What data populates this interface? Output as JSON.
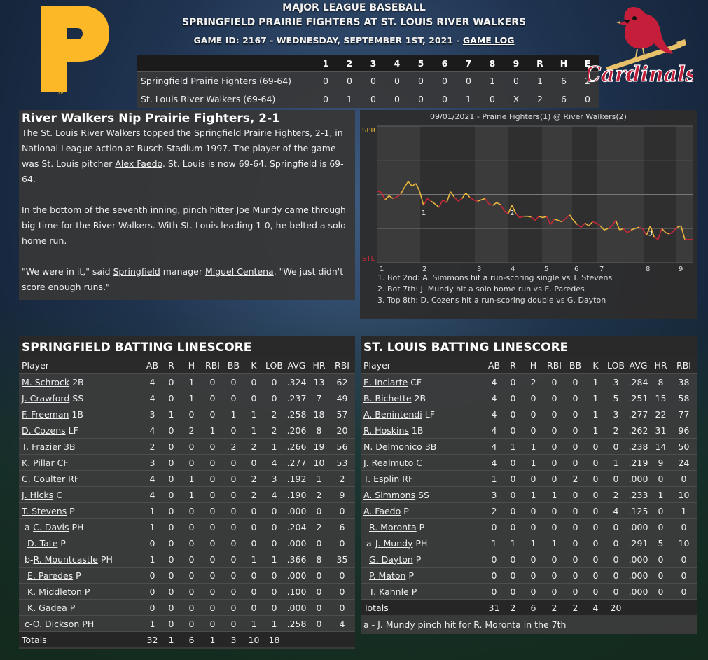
{
  "header": {
    "league": "MAJOR LEAGUE BASEBALL",
    "matchup": "SPRINGFIELD PRAIRIE FIGHTERS AT ST. LOUIS RIVER WALKERS",
    "game_info": "GAME ID: 2167 - WEDNESDAY, SEPTEMBER 1ST, 2021 - ",
    "game_log_link": "GAME LOG",
    "home_logo_text": "Cardinals"
  },
  "colors": {
    "pirates_gold": "#fdb827",
    "cardinals_red": "#c41e3a",
    "chart_lead_away": "#e8b63a",
    "chart_lead_home": "#c7283a"
  },
  "linescore": {
    "headers": [
      "1",
      "2",
      "3",
      "4",
      "5",
      "6",
      "7",
      "8",
      "9",
      "R",
      "H",
      "E"
    ],
    "teams": [
      {
        "name": "Springfield Prairie Fighters (69-64)",
        "cells": [
          "0",
          "0",
          "0",
          "0",
          "0",
          "0",
          "0",
          "1",
          "0",
          "1",
          "6",
          "2"
        ]
      },
      {
        "name": "St. Louis River Walkers (69-64)",
        "cells": [
          "0",
          "1",
          "0",
          "0",
          "0",
          "0",
          "1",
          "0",
          "X",
          "2",
          "6",
          "0"
        ]
      }
    ]
  },
  "story": {
    "headline": "River Walkers Nip Prairie Fighters, 2-1",
    "p1": {
      "a": "The ",
      "team1": "St. Louis River Walkers",
      "b": " topped the ",
      "team2": "Springfield Prairie Fighters",
      "c": ", 2-1, in National League action at Busch Stadium 1997. The player of the game was St. Louis pitcher ",
      "player": "Alex Faedo",
      "d": ". St. Louis is now 69-64. Springfield is 69-64."
    },
    "p2": {
      "a": "In the bottom of the seventh inning, pinch hitter ",
      "player": "Joe Mundy",
      "b": " came through big-time for the River Walkers. With St. Louis leading 1-0, he belted a solo home run."
    },
    "p3": {
      "a": "\"We were in it,\" said ",
      "team": "Springfield",
      "b": " manager ",
      "manager": "Miguel Centena",
      "c": ". \"We just didn't score enough runs.\""
    }
  },
  "chart_data": {
    "type": "line",
    "title": "09/01/2021 - Prairie Fighters(1) @ River Walkers(2)",
    "y_top_label": "SPR",
    "y_bottom_label": "STL",
    "inning_labels": [
      "1",
      "2",
      "3",
      "4",
      "5",
      "6",
      "7",
      "8",
      "9"
    ],
    "ylim": [
      -100,
      100
    ],
    "values": [
      5,
      3,
      -8,
      -2,
      -6,
      -4,
      0,
      10,
      19,
      12,
      16,
      4,
      -16,
      -6,
      -10,
      -14,
      -19,
      -8,
      -12,
      4,
      -4,
      -10,
      -6,
      2,
      -4,
      -8,
      -10,
      -8,
      -6,
      -14,
      -16,
      -12,
      -15,
      -24,
      -28,
      -16,
      -28,
      -34,
      -32,
      -32,
      -33,
      -38,
      -32,
      -34,
      -32,
      -44,
      -36,
      -38,
      -40,
      -35,
      -30,
      -38,
      -44,
      -48,
      -42,
      -46,
      -40,
      -42,
      -46,
      -52,
      -50,
      -46,
      -38,
      -52,
      -50,
      -56,
      -52,
      -50,
      -48,
      -50,
      -60,
      -46,
      -62,
      -66,
      -50,
      -56,
      -58,
      -54,
      -48,
      -46,
      -66,
      -66,
      -66
    ],
    "markers": [
      {
        "label": "1",
        "idx": 12
      },
      {
        "label": "2",
        "idx": 35
      },
      {
        "label": "3",
        "idx": 71
      }
    ],
    "notes": [
      "1. Bot 2nd: A. Simmons hit a run-scoring single vs T. Stevens",
      "2. Bot 7th: J. Mundy hit a solo home run vs E. Paredes",
      "3. Top 8th: D. Cozens hit a run-scoring double vs G. Dayton"
    ]
  },
  "batting_headers": [
    "Player",
    "AB",
    "R",
    "H",
    "RBI",
    "BB",
    "K",
    "LOB",
    "AVG",
    "HR",
    "RBI"
  ],
  "springfield": {
    "title": "SPRINGFIELD BATTING LINESCORE",
    "rows": [
      {
        "prefix": "",
        "name": "M. Schrock",
        "pos": "2B",
        "s": [
          "4",
          "0",
          "1",
          "0",
          "0",
          "0",
          "0",
          ".324",
          "13",
          "62"
        ]
      },
      {
        "prefix": "",
        "name": "J. Crawford",
        "pos": "SS",
        "s": [
          "4",
          "0",
          "1",
          "0",
          "0",
          "0",
          "0",
          ".237",
          "7",
          "49"
        ]
      },
      {
        "prefix": "",
        "name": "F. Freeman",
        "pos": "1B",
        "s": [
          "3",
          "1",
          "0",
          "0",
          "1",
          "1",
          "2",
          ".258",
          "18",
          "57"
        ]
      },
      {
        "prefix": "",
        "name": "D. Cozens",
        "pos": "LF",
        "s": [
          "4",
          "0",
          "2",
          "1",
          "0",
          "1",
          "2",
          ".206",
          "8",
          "20"
        ]
      },
      {
        "prefix": "",
        "name": "T. Frazier",
        "pos": "3B",
        "s": [
          "2",
          "0",
          "0",
          "0",
          "2",
          "2",
          "1",
          ".266",
          "19",
          "56"
        ]
      },
      {
        "prefix": "",
        "name": "K. Pillar",
        "pos": "CF",
        "s": [
          "3",
          "0",
          "0",
          "0",
          "0",
          "0",
          "4",
          ".277",
          "10",
          "53"
        ]
      },
      {
        "prefix": "",
        "name": "C. Coulter",
        "pos": "RF",
        "s": [
          "4",
          "0",
          "1",
          "0",
          "0",
          "2",
          "3",
          ".192",
          "1",
          "2"
        ]
      },
      {
        "prefix": "",
        "name": "J. Hicks",
        "pos": "C",
        "s": [
          "4",
          "0",
          "1",
          "0",
          "0",
          "2",
          "4",
          ".190",
          "2",
          "9"
        ]
      },
      {
        "prefix": "",
        "name": "T. Stevens",
        "pos": "P",
        "s": [
          "1",
          "0",
          "0",
          "0",
          "0",
          "0",
          "0",
          ".000",
          "0",
          "0"
        ]
      },
      {
        "prefix": "a-",
        "name": "C. Davis",
        "pos": "PH",
        "s": [
          "1",
          "0",
          "0",
          "0",
          "0",
          "0",
          "0",
          ".204",
          "2",
          "6"
        ]
      },
      {
        "prefix": "",
        "name": "D. Tate",
        "pos": "P",
        "s": [
          "0",
          "0",
          "0",
          "0",
          "0",
          "0",
          "0",
          ".000",
          "0",
          "0"
        ]
      },
      {
        "prefix": "b-",
        "name": "R. Mountcastle",
        "pos": "PH",
        "s": [
          "1",
          "0",
          "0",
          "0",
          "0",
          "1",
          "1",
          ".366",
          "8",
          "35"
        ]
      },
      {
        "prefix": "",
        "name": "E. Paredes",
        "pos": "P",
        "s": [
          "0",
          "0",
          "0",
          "0",
          "0",
          "0",
          "0",
          ".000",
          "0",
          "0"
        ]
      },
      {
        "prefix": "",
        "name": "K. Middleton",
        "pos": "P",
        "s": [
          "0",
          "0",
          "0",
          "0",
          "0",
          "0",
          "0",
          ".100",
          "0",
          "0"
        ]
      },
      {
        "prefix": "",
        "name": "K. Gadea",
        "pos": "P",
        "s": [
          "0",
          "0",
          "0",
          "0",
          "0",
          "0",
          "0",
          ".000",
          "0",
          "0"
        ]
      },
      {
        "prefix": "c-",
        "name": "O. Dickson",
        "pos": "PH",
        "s": [
          "1",
          "0",
          "0",
          "0",
          "0",
          "1",
          "1",
          ".258",
          "0",
          "4"
        ]
      }
    ],
    "totals_label": "Totals",
    "totals": [
      "32",
      "1",
      "6",
      "1",
      "3",
      "10",
      "18",
      "",
      "",
      ""
    ]
  },
  "stlouis": {
    "title": "ST. LOUIS BATTING LINESCORE",
    "rows": [
      {
        "prefix": "",
        "name": "E. Inciarte",
        "pos": "CF",
        "s": [
          "4",
          "0",
          "2",
          "0",
          "0",
          "1",
          "3",
          ".284",
          "8",
          "38"
        ]
      },
      {
        "prefix": "",
        "name": "B. Bichette",
        "pos": "2B",
        "s": [
          "4",
          "0",
          "0",
          "0",
          "0",
          "1",
          "5",
          ".251",
          "15",
          "58"
        ]
      },
      {
        "prefix": "",
        "name": "A. Benintendi",
        "pos": "LF",
        "s": [
          "4",
          "0",
          "0",
          "0",
          "0",
          "1",
          "3",
          ".277",
          "22",
          "77"
        ]
      },
      {
        "prefix": "",
        "name": "R. Hoskins",
        "pos": "1B",
        "s": [
          "4",
          "0",
          "0",
          "0",
          "0",
          "1",
          "2",
          ".262",
          "31",
          "96"
        ]
      },
      {
        "prefix": "",
        "name": "N. Delmonico",
        "pos": "3B",
        "s": [
          "4",
          "1",
          "1",
          "0",
          "0",
          "0",
          "0",
          ".238",
          "14",
          "50"
        ]
      },
      {
        "prefix": "",
        "name": "J. Realmuto",
        "pos": "C",
        "s": [
          "4",
          "0",
          "1",
          "0",
          "0",
          "0",
          "1",
          ".219",
          "9",
          "24"
        ]
      },
      {
        "prefix": "",
        "name": "T. Esplin",
        "pos": "RF",
        "s": [
          "1",
          "0",
          "0",
          "0",
          "2",
          "0",
          "0",
          ".000",
          "0",
          "0"
        ]
      },
      {
        "prefix": "",
        "name": "A. Simmons",
        "pos": "SS",
        "s": [
          "3",
          "0",
          "1",
          "1",
          "0",
          "0",
          "2",
          ".233",
          "1",
          "10"
        ]
      },
      {
        "prefix": "",
        "name": "A. Faedo",
        "pos": "P",
        "s": [
          "2",
          "0",
          "0",
          "0",
          "0",
          "0",
          "4",
          ".125",
          "0",
          "1"
        ]
      },
      {
        "prefix": "",
        "name": "R. Moronta",
        "pos": "P",
        "s": [
          "0",
          "0",
          "0",
          "0",
          "0",
          "0",
          "0",
          ".000",
          "0",
          "0"
        ]
      },
      {
        "prefix": "a-",
        "name": "J. Mundy",
        "pos": "PH",
        "s": [
          "1",
          "1",
          "1",
          "1",
          "0",
          "0",
          "0",
          ".291",
          "5",
          "10"
        ]
      },
      {
        "prefix": "",
        "name": "G. Dayton",
        "pos": "P",
        "s": [
          "0",
          "0",
          "0",
          "0",
          "0",
          "0",
          "0",
          ".000",
          "0",
          "0"
        ]
      },
      {
        "prefix": "",
        "name": "P. Maton",
        "pos": "P",
        "s": [
          "0",
          "0",
          "0",
          "0",
          "0",
          "0",
          "0",
          ".000",
          "0",
          "0"
        ]
      },
      {
        "prefix": "",
        "name": "T. Kahnle",
        "pos": "P",
        "s": [
          "0",
          "0",
          "0",
          "0",
          "0",
          "0",
          "0",
          ".000",
          "0",
          "0"
        ]
      }
    ],
    "totals_label": "Totals",
    "totals": [
      "31",
      "2",
      "6",
      "2",
      "2",
      "4",
      "20",
      "",
      "",
      ""
    ],
    "footnote": "a - J. Mundy pinch hit for R. Moronta in the 7th"
  }
}
